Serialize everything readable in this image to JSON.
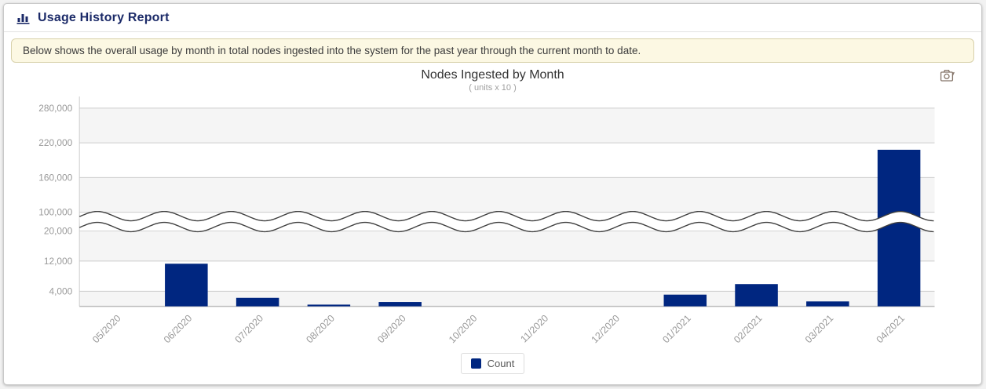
{
  "header": {
    "title": "Usage History Report",
    "icon": "bar-chart-icon"
  },
  "banner": {
    "text": "Below shows the overall usage by month in total nodes ingested into the system for the past year through the current month to date."
  },
  "toolbox": {
    "save_icon": "save-as-image-camera-icon"
  },
  "colors": {
    "bar": "#002680",
    "header_navy": "#1b2a68",
    "banner_bg": "#fcf8e3",
    "banner_border": "#d8d1ab",
    "grid_line": "#cccccc",
    "band_fill": "#f5f5f5",
    "axis_line": "#bbbbbb",
    "axis_label": "#999999",
    "wave_stroke": "#3f3f3f"
  },
  "chart_data": {
    "type": "bar",
    "title": "Nodes Ingested by Month",
    "subtitle": "( units x 10 )",
    "categories": [
      "05/2020",
      "06/2020",
      "07/2020",
      "08/2020",
      "09/2020",
      "10/2020",
      "11/2020",
      "12/2020",
      "01/2021",
      "02/2021",
      "03/2021",
      "04/2021"
    ],
    "series": [
      {
        "name": "Count",
        "color": "#002680",
        "values": [
          0,
          11300,
          2250,
          450,
          1150,
          0,
          0,
          0,
          3100,
          5900,
          1300,
          208000
        ]
      }
    ],
    "yaxis": {
      "ticks": [
        4000,
        12000,
        20000,
        100000,
        160000,
        220000,
        280000
      ],
      "break": {
        "from": 20000,
        "to": 100000
      },
      "lower_range": [
        0,
        20000
      ],
      "upper_range": [
        100000,
        298000
      ]
    },
    "xlabel_rotation": -45,
    "grid": {
      "split_bands": true,
      "horizontal_gridlines": true
    },
    "legend_position": "bottom"
  }
}
